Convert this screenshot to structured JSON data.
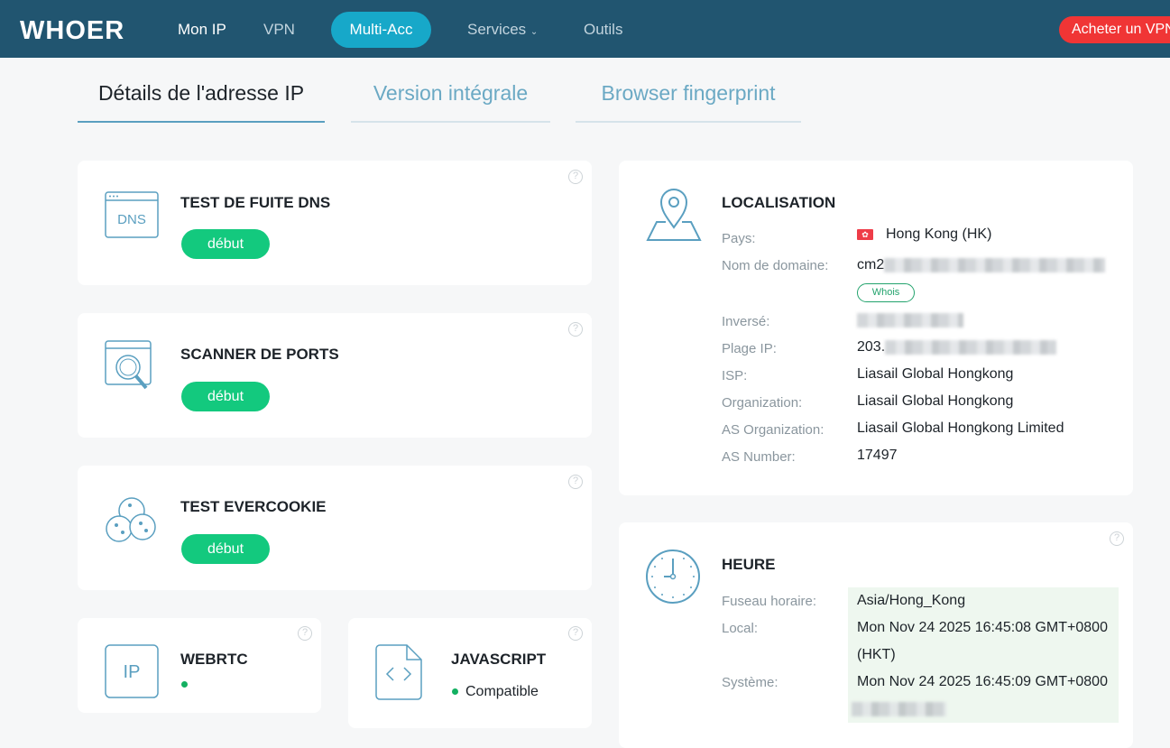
{
  "nav": {
    "logo": "WHOER",
    "items": [
      "Mon IP",
      "VPN",
      "Multi-Acc",
      "Services",
      "Outils"
    ],
    "buy": "Acheter un VPN"
  },
  "tabs": [
    "Détails de l'adresse IP",
    "Version intégrale",
    "Browser fingerprint"
  ],
  "cards": {
    "dns": {
      "title": "TEST DE FUITE DNS",
      "button": "début",
      "icon_text": "DNS"
    },
    "ports": {
      "title": "SCANNER DE PORTS",
      "button": "début"
    },
    "evercookie": {
      "title": "TEST EVERCOOKIE",
      "button": "début"
    },
    "webrtc": {
      "title": "WEBRTC",
      "icon_text": "IP"
    },
    "javascript": {
      "title": "JAVASCRIPT",
      "status": "Compatible"
    }
  },
  "location": {
    "title": "LOCALISATION",
    "labels": {
      "country": "Pays:",
      "domain": "Nom de domaine:",
      "reverse": "Inversé:",
      "range": "Plage IP:",
      "isp": "ISP:",
      "org": "Organization:",
      "asorg": "AS Organization:",
      "asn": "AS Number:"
    },
    "country": "Hong Kong (HK)",
    "domain_prefix": "cm2",
    "whois": "Whois",
    "range_prefix": "203.",
    "isp": "Liasail Global Hongkong",
    "org": "Liasail Global Hongkong",
    "asorg": "Liasail Global Hongkong Limited",
    "asn": "17497"
  },
  "time": {
    "title": "HEURE",
    "labels": {
      "tz": "Fuseau horaire:",
      "local": "Local:",
      "system": "Système:"
    },
    "tz": "Asia/Hong_Kong",
    "local": "Mon Nov 24 2025 16:45:08 GMT+0800",
    "local_suffix": "(HKT)",
    "system": "Mon Nov 24 2025 16:45:09 GMT+0800"
  },
  "colors": {
    "nav": "#215570",
    "accent": "#17a8c9",
    "green": "#13c97e",
    "buy": "#f03535"
  }
}
